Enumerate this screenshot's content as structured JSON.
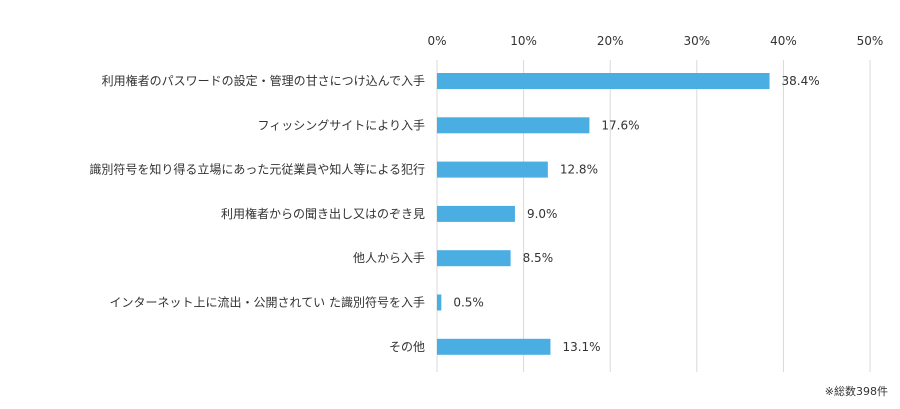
{
  "chart_data": {
    "type": "bar",
    "orientation": "horizontal",
    "categories": [
      "利用権者のパスワードの設定・管理の甘さにつけ込んで入手",
      "フィッシングサイトにより入手",
      "識別符号を知り得る立場にあった元従業員や知人等による犯行",
      "利用権者からの聞き出し又はのぞき見",
      "他人から入手",
      "インターネット上に流出・公開されてい た識別符号を入手",
      "その他"
    ],
    "values": [
      38.4,
      17.6,
      12.8,
      9.0,
      8.5,
      0.5,
      13.1
    ],
    "value_labels": [
      "38.4%",
      "17.6%",
      "12.8%",
      "9.0%",
      "8.5%",
      "0.5%",
      "13.1%"
    ],
    "xlim": [
      0,
      50
    ],
    "ticks": [
      0,
      10,
      20,
      30,
      40,
      50
    ],
    "tick_labels": [
      "0%",
      "10%",
      "20%",
      "30%",
      "40%",
      "50%"
    ],
    "tick_position": "top",
    "grid": true,
    "bar_color": "#4aaee2",
    "grid_color": "#d9d9d9",
    "title": "",
    "xlabel": "",
    "ylabel": ""
  },
  "footnote": "※総数398件"
}
